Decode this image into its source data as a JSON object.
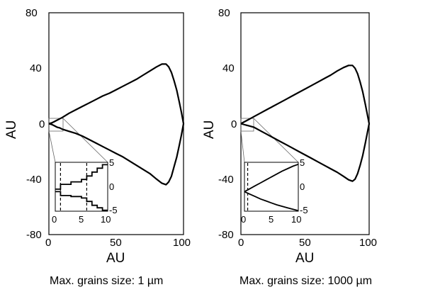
{
  "chart_data": [
    {
      "type": "line",
      "caption": "Max. grains size: 1 µm",
      "xlabel": "AU",
      "ylabel": "AU",
      "xlim": [
        0,
        100
      ],
      "ylim": [
        -80,
        80
      ],
      "xticks": [
        "0",
        "50",
        "100"
      ],
      "yticks": [
        "80",
        "40",
        "0",
        "-40",
        "-80"
      ],
      "series": [
        {
          "x": [
            0,
            2,
            4,
            6,
            8,
            10,
            15,
            20,
            25,
            30,
            35,
            40,
            45,
            50,
            55,
            60,
            65,
            70,
            75,
            80,
            84,
            87,
            89,
            91,
            93,
            95,
            97,
            98.5,
            100,
            98.5,
            97,
            95,
            93,
            91,
            89,
            87,
            84,
            80,
            75,
            70,
            65,
            60,
            55,
            50,
            45,
            40,
            35,
            30,
            25,
            20,
            15,
            10,
            8,
            6,
            4,
            2,
            0
          ],
          "y": [
            0,
            0.5,
            1.5,
            2.5,
            3.5,
            4.5,
            7.5,
            10,
            12.5,
            15,
            17.5,
            20,
            22,
            24.5,
            27,
            29.5,
            32,
            35,
            38,
            41,
            43,
            43,
            41,
            37,
            31,
            24,
            15,
            8,
            0,
            -8,
            -15,
            -24,
            -31,
            -38,
            -42,
            -44,
            -43,
            -40,
            -36,
            -33,
            -30,
            -27,
            -24,
            -21.5,
            -19,
            -16.5,
            -14,
            -11.5,
            -9,
            -7,
            -5.5,
            -4,
            -3,
            -2.5,
            -1.5,
            -0.5,
            0
          ]
        }
      ],
      "inset": {
        "xlim": [
          0,
          10
        ],
        "ylim": [
          -5,
          5
        ],
        "xticks": [
          "0",
          "5",
          "10"
        ],
        "yticks": [
          "5",
          "0",
          "-5"
        ],
        "markers_x": [
          1,
          6
        ],
        "upper": {
          "x": [
            0,
            1,
            1,
            3,
            3,
            5,
            5,
            6,
            6,
            7,
            7,
            8,
            8,
            9,
            9,
            10
          ],
          "y": [
            -0.5,
            -0.5,
            0.5,
            0.5,
            1.0,
            1.0,
            1.5,
            1.5,
            2.2,
            2.2,
            3.0,
            3.0,
            3.8,
            3.8,
            4.5,
            4.5
          ]
        },
        "lower": {
          "x": [
            0,
            1,
            1,
            3,
            3,
            5,
            5,
            6,
            6,
            7,
            7,
            8,
            8,
            9,
            9,
            10
          ],
          "y": [
            -1.0,
            -1.0,
            -1.8,
            -1.8,
            -2.0,
            -2.0,
            -2.3,
            -2.3,
            -3.0,
            -3.0,
            -3.8,
            -3.8,
            -4.3,
            -4.3,
            -4.8,
            -4.8
          ]
        }
      }
    },
    {
      "type": "line",
      "caption": "Max. grains size: 1000 µm",
      "xlabel": "AU",
      "ylabel": "AU",
      "xlim": [
        0,
        100
      ],
      "ylim": [
        -80,
        80
      ],
      "xticks": [
        "0",
        "50",
        "100"
      ],
      "yticks": [
        "80",
        "40",
        "0",
        "-40",
        "-80"
      ],
      "series": [
        {
          "x": [
            0,
            2,
            4,
            6,
            8,
            10,
            15,
            20,
            25,
            30,
            35,
            40,
            45,
            50,
            55,
            60,
            65,
            70,
            75,
            80,
            84,
            87,
            89,
            91,
            93,
            95,
            97,
            98.5,
            100,
            98.5,
            97,
            95,
            93,
            91,
            89,
            87,
            84,
            80,
            75,
            70,
            65,
            60,
            55,
            50,
            45,
            40,
            35,
            30,
            25,
            20,
            15,
            10,
            8,
            6,
            4,
            2,
            0
          ],
          "y": [
            0,
            1,
            2,
            3,
            4,
            5,
            7.5,
            10,
            12.5,
            15,
            17.5,
            20,
            22.5,
            25,
            27.5,
            30,
            32.5,
            35,
            38,
            40.5,
            42,
            42,
            40,
            36,
            30,
            23,
            14,
            7,
            0,
            -7,
            -14,
            -23,
            -30,
            -36,
            -40,
            -41.5,
            -40.5,
            -38,
            -35,
            -32.5,
            -30,
            -27.5,
            -25,
            -22.5,
            -20,
            -17.5,
            -15,
            -12.5,
            -10,
            -7.5,
            -5,
            -2.5,
            -2,
            -1.5,
            -1,
            -0.5,
            0
          ]
        }
      ],
      "inset": {
        "xlim": [
          0,
          10
        ],
        "ylim": [
          -5,
          5
        ],
        "xticks": [
          "0",
          "5",
          "10"
        ],
        "yticks": [
          "5",
          "0",
          "-5"
        ],
        "markers_x": [
          0.6
        ],
        "upper": {
          "x": [
            0,
            1,
            2,
            3,
            4,
            5,
            6,
            7,
            8,
            9,
            10
          ],
          "y": [
            -1.0,
            -0.4,
            0.2,
            0.8,
            1.4,
            2.0,
            2.6,
            3.2,
            3.7,
            4.2,
            4.6
          ]
        },
        "lower": {
          "x": [
            0,
            1,
            2,
            3,
            4,
            5,
            6,
            7,
            8,
            9,
            10
          ],
          "y": [
            -1.0,
            -1.5,
            -2.0,
            -2.5,
            -2.9,
            -3.3,
            -3.7,
            -4.0,
            -4.3,
            -4.6,
            -4.9
          ]
        }
      }
    }
  ]
}
